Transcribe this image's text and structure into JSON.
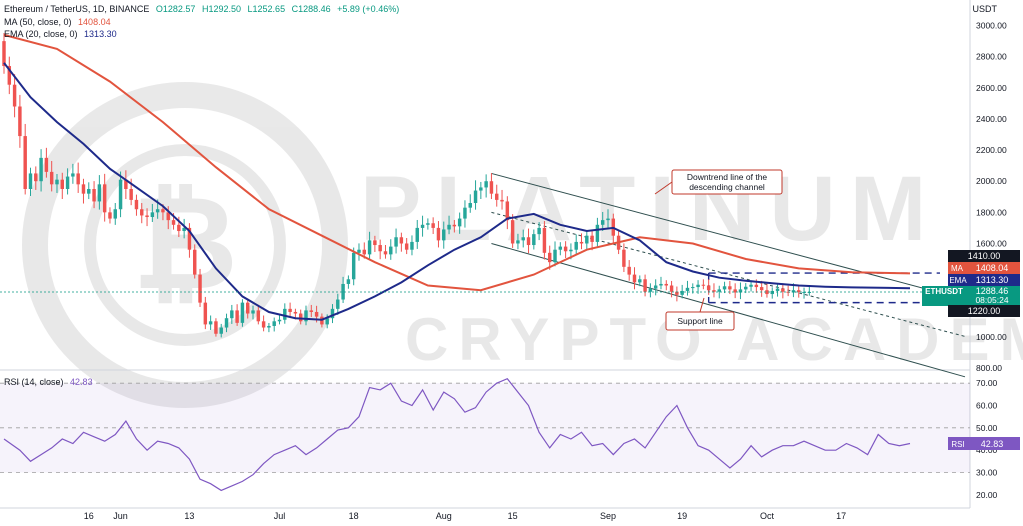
{
  "header": {
    "symbol": "Ethereum / TetherUS, 1D, BINANCE",
    "open": "O1282.57",
    "high": "H1292.50",
    "low": "L1252.65",
    "close": "C1288.46",
    "change": "+5.89 (+0.46%)",
    "ma_label": "MA (50, close, 0)",
    "ma_value": "1408.04",
    "ema_label": "EMA (20, close, 0)",
    "ema_value": "1313.30",
    "rsi_label": "RSI (14, close)",
    "rsi_value": "42.83"
  },
  "axis_unit": "USDT",
  "watermark": {
    "line1": "PLATINUM",
    "line2": "CRYPTO ACADEMY"
  },
  "annotations": {
    "downtrend_line1": "Downtrend line of the",
    "downtrend_line2": "descending channel",
    "support": "Support line"
  },
  "price_tags": {
    "resistance": "1410.00",
    "ma_tag": "MA",
    "ma_value": "1408.04",
    "ema_tag": "EMA",
    "ema_value": "1313.30",
    "symbol_tag": "ETHUSDT",
    "last_price": "1288.46",
    "countdown": "08:05:24",
    "support": "1220.00",
    "rsi_tag": "RSI",
    "rsi_value": "42.83"
  },
  "colors": {
    "up": "#26a69a",
    "down": "#ef5350",
    "ma": "#e2543e",
    "ema": "#1e2a8a",
    "rsi": "#7e57c2",
    "channel": "#2f4f4f",
    "annotation_border": "#c0392b",
    "last_price_tag": "#089981",
    "axis_text": "#131722"
  },
  "chart_data": [
    {
      "type": "candlestick",
      "title": "Ethereum / TetherUS, 1D, BINANCE",
      "ylabel": "USDT",
      "ylim": [
        800,
        3100
      ],
      "y_ticks": [
        "800.00",
        "1000.00",
        "1200.00",
        "1400.00",
        "1600.00",
        "1800.00",
        "2000.00",
        "2200.00",
        "2400.00",
        "2600.00",
        "2800.00",
        "3000.00"
      ],
      "x_ticks": [
        "16",
        "Jun",
        "13",
        "Jul",
        "18",
        "Aug",
        "15",
        "Sep",
        "19",
        "Oct",
        "17"
      ],
      "x_tick_day": [
        16,
        22,
        35,
        52,
        66,
        83,
        96,
        114,
        128,
        144,
        158
      ],
      "day_range": [
        0,
        171
      ],
      "close": [
        2740,
        2620,
        2480,
        2290,
        1950,
        2050,
        2000,
        2150,
        2060,
        1980,
        2010,
        1950,
        2030,
        2050,
        1980,
        1920,
        1950,
        1870,
        1980,
        1800,
        1760,
        1820,
        2010,
        1950,
        1880,
        1820,
        1780,
        1770,
        1800,
        1820,
        1800,
        1750,
        1720,
        1680,
        1700,
        1560,
        1400,
        1220,
        1080,
        1100,
        1020,
        1060,
        1120,
        1170,
        1090,
        1220,
        1150,
        1170,
        1100,
        1060,
        1070,
        1100,
        1110,
        1180,
        1160,
        1150,
        1100,
        1170,
        1160,
        1130,
        1080,
        1120,
        1180,
        1240,
        1340,
        1370,
        1540,
        1560,
        1530,
        1620,
        1590,
        1550,
        1530,
        1580,
        1640,
        1600,
        1560,
        1610,
        1700,
        1720,
        1730,
        1700,
        1620,
        1690,
        1720,
        1710,
        1760,
        1830,
        1860,
        1940,
        1960,
        2000,
        1920,
        1880,
        1870,
        1750,
        1600,
        1620,
        1640,
        1590,
        1660,
        1700,
        1540,
        1480,
        1560,
        1580,
        1550,
        1560,
        1610,
        1600,
        1650,
        1610,
        1720,
        1750,
        1760,
        1650,
        1560,
        1450,
        1400,
        1350,
        1370,
        1290,
        1310,
        1330,
        1340,
        1330,
        1290,
        1270,
        1295,
        1315,
        1320,
        1335,
        1330,
        1300,
        1290,
        1305,
        1325,
        1305,
        1285,
        1305,
        1322,
        1335,
        1320,
        1300,
        1275,
        1295,
        1310,
        1290,
        1285,
        1300,
        1288,
        1288,
        1288.46
      ],
      "series": [
        {
          "name": "MA (50, close, 0)",
          "last": 1408.04,
          "values": [
            [
              0,
              2940
            ],
            [
              10,
              2850
            ],
            [
              20,
              2640
            ],
            [
              30,
              2380
            ],
            [
              40,
              2090
            ],
            [
              50,
              1820
            ],
            [
              60,
              1650
            ],
            [
              70,
              1480
            ],
            [
              80,
              1330
            ],
            [
              90,
              1300
            ],
            [
              100,
              1400
            ],
            [
              110,
              1560
            ],
            [
              120,
              1640
            ],
            [
              130,
              1600
            ],
            [
              140,
              1500
            ],
            [
              150,
              1440
            ],
            [
              160,
              1415
            ],
            [
              171,
              1408
            ]
          ]
        },
        {
          "name": "EMA (20, close, 0)",
          "last": 1313.3,
          "values": [
            [
              0,
              2760
            ],
            [
              5,
              2540
            ],
            [
              10,
              2380
            ],
            [
              15,
              2240
            ],
            [
              20,
              2080
            ],
            [
              25,
              1960
            ],
            [
              30,
              1840
            ],
            [
              35,
              1680
            ],
            [
              40,
              1440
            ],
            [
              45,
              1260
            ],
            [
              50,
              1160
            ],
            [
              55,
              1120
            ],
            [
              60,
              1110
            ],
            [
              65,
              1180
            ],
            [
              70,
              1260
            ],
            [
              75,
              1350
            ],
            [
              80,
              1460
            ],
            [
              85,
              1560
            ],
            [
              90,
              1640
            ],
            [
              95,
              1760
            ],
            [
              100,
              1790
            ],
            [
              105,
              1720
            ],
            [
              110,
              1680
            ],
            [
              115,
              1700
            ],
            [
              120,
              1620
            ],
            [
              125,
              1480
            ],
            [
              130,
              1420
            ],
            [
              135,
              1380
            ],
            [
              140,
              1360
            ],
            [
              145,
              1345
            ],
            [
              150,
              1330
            ],
            [
              155,
              1322
            ],
            [
              160,
              1318
            ],
            [
              171,
              1313
            ]
          ]
        }
      ],
      "lines": [
        {
          "name": "downtrend",
          "from": [
            92,
            2050
          ],
          "to": [
            171,
            1370
          ]
        },
        {
          "name": "channel_mid",
          "from": [
            92,
            1800
          ],
          "to": [
            171,
            1130
          ]
        },
        {
          "name": "channel_low",
          "from": [
            92,
            1600
          ],
          "to": [
            171,
            880
          ]
        }
      ],
      "levels": [
        1410,
        1220
      ],
      "annotations": [
        "Downtrend line of the descending channel",
        "Support line"
      ]
    },
    {
      "type": "line",
      "title": "RSI (14, close)",
      "ylim": [
        15,
        75
      ],
      "y_ticks": [
        "20.00",
        "30.00",
        "40.00",
        "50.00",
        "60.00",
        "70.00"
      ],
      "levels": [
        30,
        50,
        70
      ],
      "series": [
        {
          "name": "RSI (14, close)",
          "last": 42.83,
          "values": [
            [
              0,
              45
            ],
            [
              3,
              40
            ],
            [
              5,
              35
            ],
            [
              7,
              38
            ],
            [
              9,
              41
            ],
            [
              11,
              45
            ],
            [
              13,
              43
            ],
            [
              15,
              48
            ],
            [
              17,
              46
            ],
            [
              19,
              44
            ],
            [
              21,
              47
            ],
            [
              23,
              53
            ],
            [
              25,
              45
            ],
            [
              27,
              40
            ],
            [
              29,
              44
            ],
            [
              31,
              43
            ],
            [
              33,
              41
            ],
            [
              35,
              36
            ],
            [
              37,
              27
            ],
            [
              39,
              25
            ],
            [
              41,
              22
            ],
            [
              43,
              24
            ],
            [
              45,
              26
            ],
            [
              47,
              29
            ],
            [
              49,
              34
            ],
            [
              51,
              38
            ],
            [
              53,
              40
            ],
            [
              55,
              42
            ],
            [
              57,
              38
            ],
            [
              59,
              41
            ],
            [
              61,
              45
            ],
            [
              63,
              49
            ],
            [
              65,
              50
            ],
            [
              67,
              55
            ],
            [
              69,
              68
            ],
            [
              71,
              67
            ],
            [
              73,
              70
            ],
            [
              75,
              62
            ],
            [
              77,
              60
            ],
            [
              79,
              67
            ],
            [
              81,
              58
            ],
            [
              83,
              66
            ],
            [
              85,
              63
            ],
            [
              87,
              57
            ],
            [
              89,
              59
            ],
            [
              91,
              66
            ],
            [
              93,
              70
            ],
            [
              95,
              72
            ],
            [
              97,
              66
            ],
            [
              99,
              60
            ],
            [
              101,
              48
            ],
            [
              103,
              41
            ],
            [
              105,
              47
            ],
            [
              107,
              45
            ],
            [
              109,
              48
            ],
            [
              111,
              42
            ],
            [
              113,
              43
            ],
            [
              115,
              38
            ],
            [
              117,
              43
            ],
            [
              119,
              45
            ],
            [
              121,
              41
            ],
            [
              123,
              48
            ],
            [
              125,
              55
            ],
            [
              127,
              60
            ],
            [
              129,
              50
            ],
            [
              131,
              42
            ],
            [
              133,
              40
            ],
            [
              135,
              36
            ],
            [
              137,
              32
            ],
            [
              139,
              36
            ],
            [
              141,
              42
            ],
            [
              143,
              37
            ],
            [
              145,
              40
            ],
            [
              147,
              42
            ],
            [
              149,
              42
            ],
            [
              151,
              44
            ],
            [
              153,
              42
            ],
            [
              155,
              40
            ],
            [
              157,
              40
            ],
            [
              159,
              43
            ],
            [
              161,
              41
            ],
            [
              163,
              38
            ],
            [
              165,
              47
            ],
            [
              167,
              43
            ],
            [
              169,
              42
            ],
            [
              171,
              43
            ]
          ]
        }
      ]
    }
  ]
}
